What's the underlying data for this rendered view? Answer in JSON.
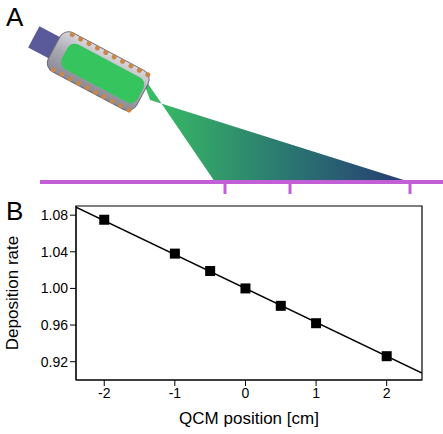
{
  "panel_labels": [
    "A",
    "B"
  ],
  "chart_data": {
    "type": "scatter",
    "x_label": "QCM position [cm]",
    "y_label": "Deposition rate",
    "x": [
      -2,
      -1,
      -0.5,
      0,
      0.5,
      1,
      2
    ],
    "values": [
      1.075,
      1.038,
      1.019,
      1.0,
      0.981,
      0.962,
      0.926
    ],
    "color": "#000000",
    "marker": "square",
    "fit": {
      "x": [
        -2.4,
        2.5
      ],
      "values": [
        1.0888,
        0.9075
      ]
    },
    "xlim": [
      -2.4,
      2.5
    ],
    "ylim": [
      0.9,
      1.09
    ],
    "xticks": [
      -2,
      -1,
      0,
      1,
      2
    ],
    "yticks": [
      1.08,
      1.04,
      {
        "value": 1,
        "label": "1.00"
      },
      0.96,
      0.92
    ],
    "grid": false
  }
}
